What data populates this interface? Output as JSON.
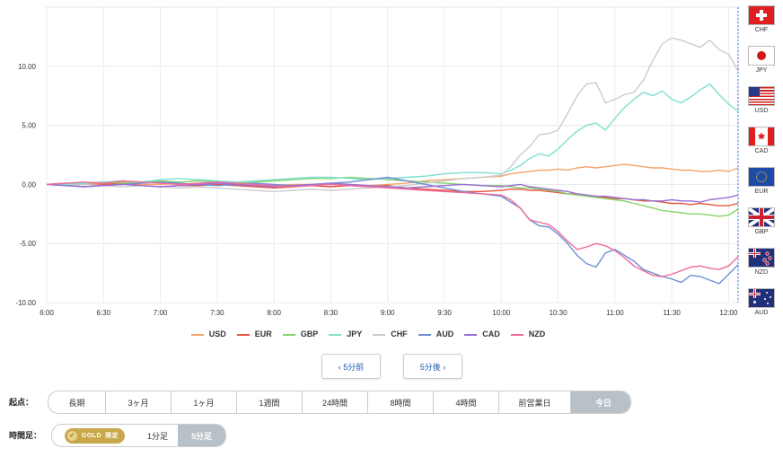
{
  "chart_data": {
    "type": "line",
    "x": [
      "6:00",
      "6:10",
      "6:20",
      "6:30",
      "6:40",
      "6:50",
      "7:00",
      "7:10",
      "7:20",
      "7:30",
      "7:40",
      "7:50",
      "8:00",
      "8:10",
      "8:20",
      "8:30",
      "8:40",
      "8:50",
      "9:00",
      "9:10",
      "9:20",
      "9:30",
      "9:40",
      "9:50",
      "10:00",
      "10:05",
      "10:10",
      "10:15",
      "10:20",
      "10:25",
      "10:30",
      "10:35",
      "10:40",
      "10:45",
      "10:50",
      "10:55",
      "11:00",
      "11:05",
      "11:10",
      "11:15",
      "11:20",
      "11:25",
      "11:30",
      "11:35",
      "11:40",
      "11:45",
      "11:50",
      "11:55",
      "12:00",
      "12:05"
    ],
    "xticks": [
      "6:00",
      "6:30",
      "7:00",
      "7:30",
      "8:00",
      "8:30",
      "9:00",
      "9:30",
      "10:00",
      "10:30",
      "11:00",
      "11:30",
      "12:00"
    ],
    "yticks": [
      "10.00",
      "5.00",
      "0.00",
      "-5.00",
      "-10.00"
    ],
    "ylim": [
      -10,
      15
    ],
    "grid": true,
    "series": [
      {
        "name": "USD",
        "color": "#f4a46c",
        "values": [
          0,
          0.1,
          0,
          0.1,
          0.2,
          0,
          0,
          0.1,
          -0.1,
          0,
          -0.1,
          -0.1,
          -0.1,
          0,
          0,
          0,
          0,
          -0.1,
          0,
          0.1,
          0.3,
          0.4,
          0.5,
          0.6,
          0.7,
          0.9,
          1.0,
          1.1,
          1.2,
          1.2,
          1.3,
          1.2,
          1.4,
          1.5,
          1.4,
          1.5,
          1.6,
          1.7,
          1.6,
          1.5,
          1.4,
          1.4,
          1.3,
          1.2,
          1.2,
          1.1,
          1.1,
          1.2,
          1.1,
          1.4
        ]
      },
      {
        "name": "EUR",
        "color": "#e8573f",
        "values": [
          0,
          0.1,
          0,
          0,
          0.1,
          -0.1,
          -0.2,
          -0.1,
          -0.1,
          0,
          -0.1,
          -0.2,
          -0.3,
          -0.2,
          -0.1,
          -0.2,
          -0.1,
          -0.2,
          -0.1,
          -0.3,
          -0.4,
          -0.5,
          -0.6,
          -0.6,
          -0.5,
          -0.4,
          -0.4,
          -0.5,
          -0.5,
          -0.6,
          -0.7,
          -0.8,
          -0.8,
          -0.9,
          -1.0,
          -1.1,
          -1.2,
          -1.2,
          -1.3,
          -1.4,
          -1.4,
          -1.5,
          -1.6,
          -1.6,
          -1.7,
          -1.6,
          -1.7,
          -1.8,
          -1.8,
          -1.6
        ]
      },
      {
        "name": "GBP",
        "color": "#86d46a",
        "values": [
          0,
          0.1,
          0.1,
          0.2,
          0.1,
          0.2,
          0.3,
          0.2,
          0.3,
          0.2,
          0.1,
          0.2,
          0.3,
          0.4,
          0.5,
          0.5,
          0.6,
          0.5,
          0.4,
          0.3,
          0.2,
          0.1,
          0,
          -0.1,
          -0.1,
          -0.2,
          -0.3,
          -0.3,
          -0.4,
          -0.5,
          -0.6,
          -0.8,
          -0.9,
          -1.0,
          -1.1,
          -1.2,
          -1.3,
          -1.4,
          -1.6,
          -1.8,
          -2.0,
          -2.2,
          -2.3,
          -2.4,
          -2.5,
          -2.5,
          -2.6,
          -2.7,
          -2.6,
          -2.1
        ]
      },
      {
        "name": "JPY",
        "color": "#7de0d0",
        "values": [
          0,
          0,
          0.1,
          0.2,
          0.3,
          0.2,
          0.4,
          0.5,
          0.4,
          0.3,
          0.2,
          0.3,
          0.4,
          0.5,
          0.6,
          0.6,
          0.5,
          0.4,
          0.5,
          0.6,
          0.7,
          0.9,
          1.0,
          1.0,
          0.9,
          1.2,
          1.6,
          2.2,
          2.6,
          2.4,
          3.0,
          3.8,
          4.5,
          5.0,
          5.2,
          4.6,
          5.6,
          6.5,
          7.2,
          7.8,
          7.5,
          7.9,
          7.2,
          6.9,
          7.4,
          8.0,
          8.5,
          7.6,
          6.8,
          6.2
        ]
      },
      {
        "name": "CHF",
        "color": "#cccccc",
        "values": [
          0,
          -0.1,
          0,
          -0.1,
          -0.2,
          -0.1,
          -0.2,
          -0.3,
          -0.2,
          -0.3,
          -0.4,
          -0.5,
          -0.6,
          -0.5,
          -0.4,
          -0.5,
          -0.4,
          -0.3,
          -0.2,
          -0.1,
          0.1,
          0.3,
          0.5,
          0.6,
          0.8,
          1.5,
          2.5,
          3.2,
          4.2,
          4.3,
          4.6,
          6.0,
          7.5,
          8.5,
          8.6,
          6.9,
          7.2,
          7.6,
          7.8,
          8.8,
          10.5,
          11.9,
          12.4,
          12.2,
          11.9,
          11.6,
          12.2,
          11.4,
          11.0,
          9.6
        ]
      },
      {
        "name": "AUD",
        "color": "#6f8fd6",
        "values": [
          0,
          -0.1,
          -0.2,
          -0.1,
          0,
          0.1,
          0.2,
          0.1,
          0,
          -0.1,
          0,
          0.1,
          0,
          -0.1,
          0,
          0.1,
          0.2,
          0.4,
          0.6,
          0.3,
          0,
          -0.3,
          -0.6,
          -0.8,
          -1.0,
          -1.5,
          -2.0,
          -3.0,
          -3.5,
          -3.6,
          -4.2,
          -5.0,
          -6.0,
          -6.7,
          -7.0,
          -5.8,
          -5.5,
          -6.0,
          -6.5,
          -7.2,
          -7.5,
          -7.8,
          -8.0,
          -8.3,
          -7.7,
          -7.8,
          -8.1,
          -8.4,
          -7.6,
          -6.8
        ]
      },
      {
        "name": "CAD",
        "color": "#9b6fd6",
        "values": [
          0,
          -0.1,
          -0.2,
          -0.1,
          0,
          -0.1,
          -0.2,
          -0.1,
          0,
          0.1,
          0,
          -0.1,
          -0.2,
          -0.1,
          0,
          0.1,
          0,
          -0.1,
          -0.2,
          -0.3,
          -0.2,
          -0.1,
          0,
          -0.1,
          -0.2,
          -0.1,
          0,
          -0.2,
          -0.3,
          -0.4,
          -0.5,
          -0.6,
          -0.8,
          -0.9,
          -1.0,
          -1.0,
          -1.1,
          -1.2,
          -1.3,
          -1.3,
          -1.4,
          -1.4,
          -1.3,
          -1.4,
          -1.4,
          -1.5,
          -1.3,
          -1.2,
          -1.1,
          -0.9
        ]
      },
      {
        "name": "NZD",
        "color": "#f06a9a",
        "values": [
          0,
          0.1,
          0.2,
          0.1,
          0.3,
          0.2,
          0.1,
          0,
          0.1,
          0.2,
          0.1,
          0,
          -0.1,
          -0.2,
          -0.1,
          0,
          -0.1,
          -0.2,
          -0.3,
          -0.4,
          -0.5,
          -0.6,
          -0.7,
          -0.8,
          -0.9,
          -1.3,
          -2.0,
          -3.0,
          -3.2,
          -3.4,
          -4.0,
          -4.8,
          -5.5,
          -5.3,
          -5.0,
          -5.2,
          -5.6,
          -6.2,
          -6.9,
          -7.3,
          -7.7,
          -7.8,
          -7.6,
          -7.3,
          -7.0,
          -6.9,
          -7.1,
          -7.2,
          -6.9,
          -6.1
        ]
      }
    ]
  },
  "flags": [
    {
      "code": "CHF",
      "icon": "flag-switzerland"
    },
    {
      "code": "JPY",
      "icon": "flag-japan"
    },
    {
      "code": "USD",
      "icon": "flag-usa"
    },
    {
      "code": "CAD",
      "icon": "flag-canada"
    },
    {
      "code": "EUR",
      "icon": "flag-eu"
    },
    {
      "code": "GBP",
      "icon": "flag-uk"
    },
    {
      "code": "NZD",
      "icon": "flag-new-zealand"
    },
    {
      "code": "AUD",
      "icon": "flag-australia"
    }
  ],
  "nav": {
    "prev_label": "‹ 5分前",
    "next_label": "5分後 ›"
  },
  "range": {
    "label": "起点：",
    "options": [
      "長期",
      "3ヶ月",
      "1ヶ月",
      "1週間",
      "24時間",
      "8時間",
      "4時間",
      "前営業日",
      "今日"
    ],
    "selected": "今日"
  },
  "timeframe": {
    "label": "時間足：",
    "gold_text": "GOLD",
    "gold_limited": "限定",
    "options": [
      "1分足",
      "5分足"
    ],
    "selected": "5分足"
  }
}
